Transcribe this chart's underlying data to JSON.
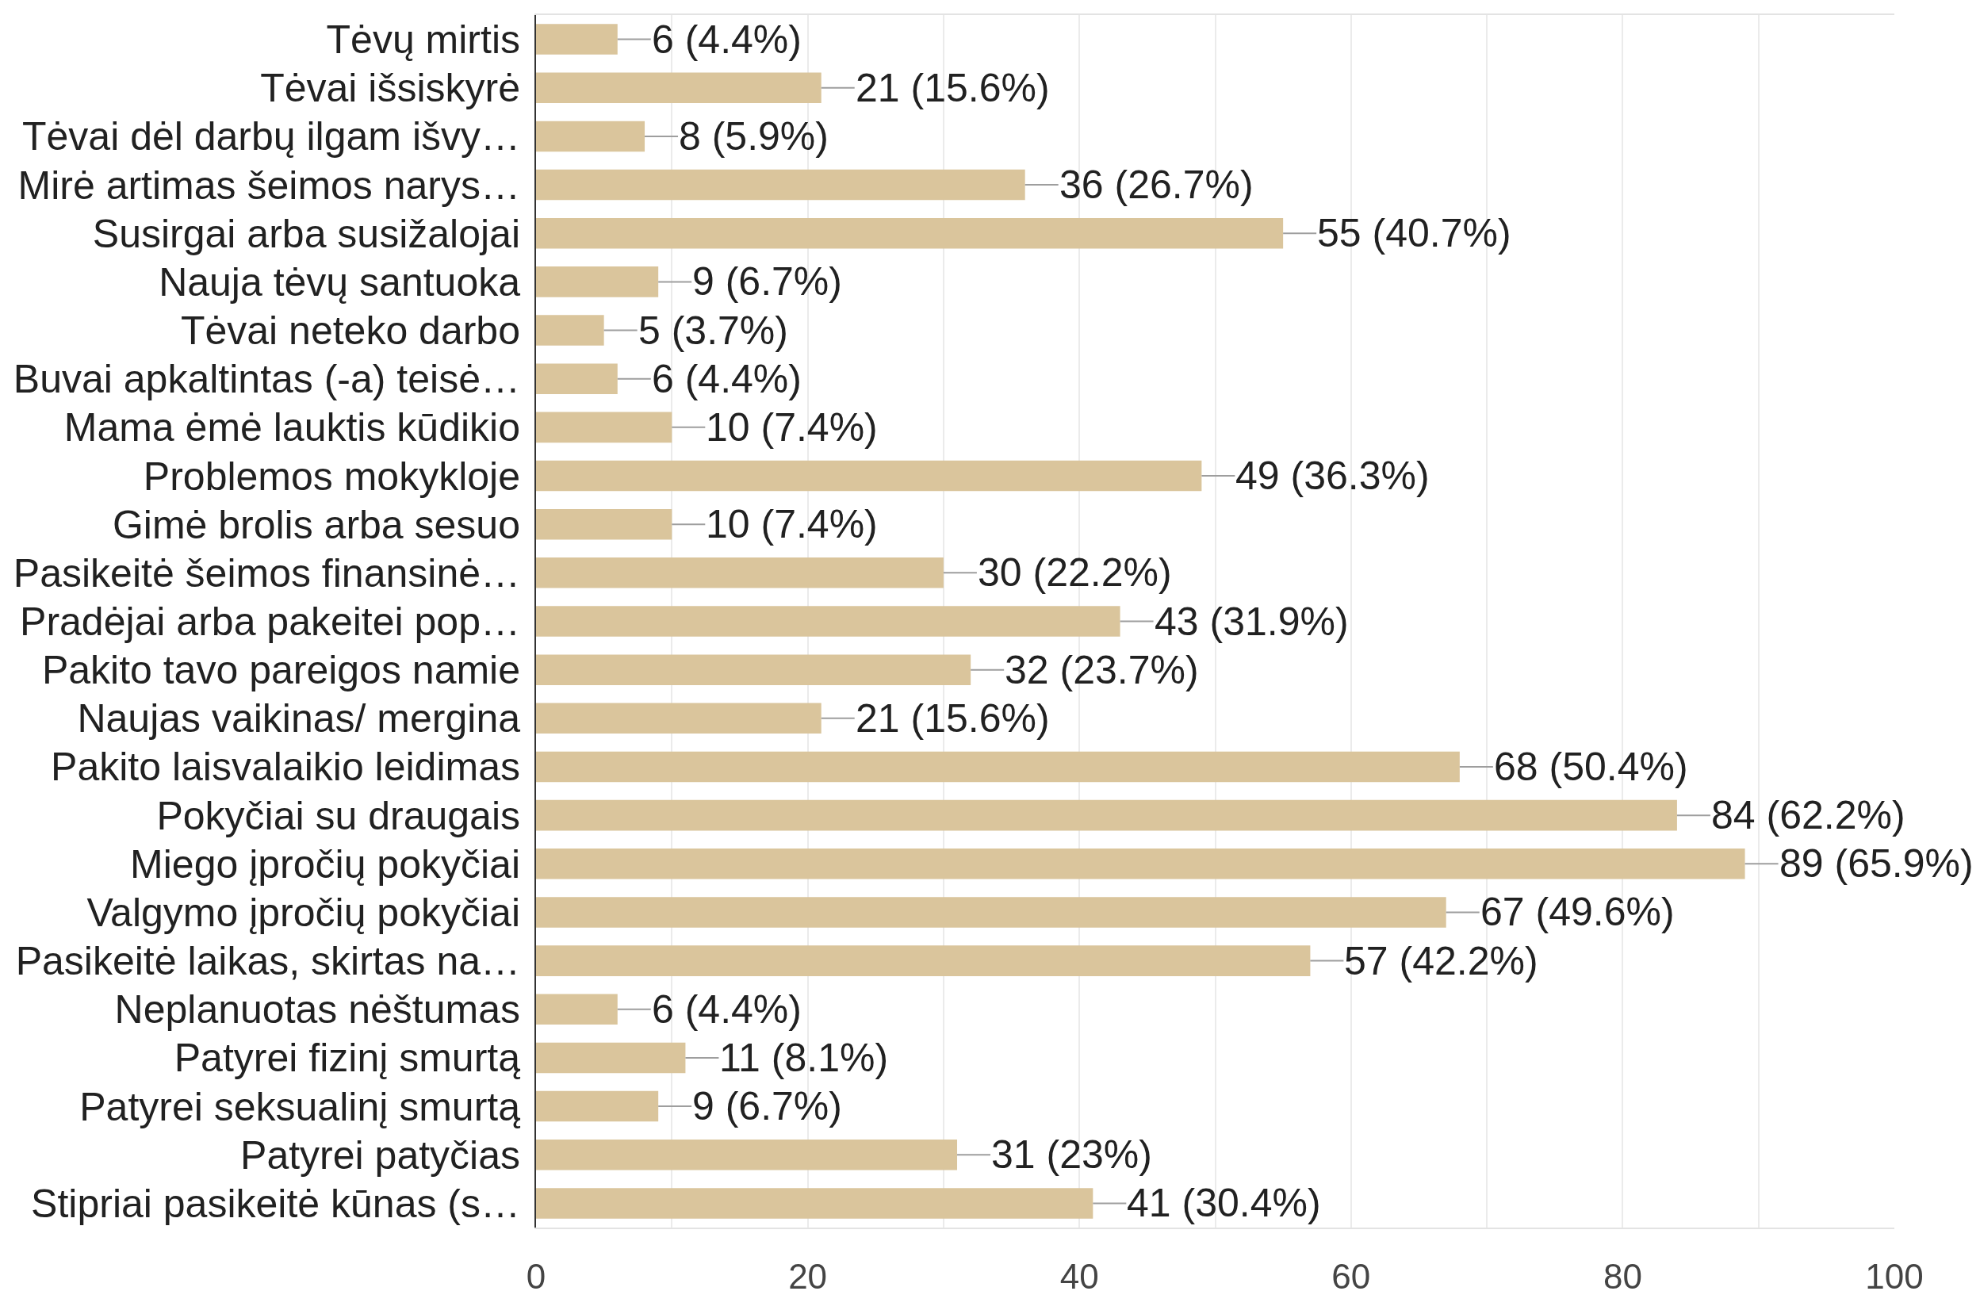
{
  "chart_data": {
    "type": "bar",
    "orientation": "horizontal",
    "categories": [
      "Tėvų mirtis",
      "Tėvai išsiskyrė",
      "Tėvai dėl darbų ilgam išvy…",
      "Mirė artimas šeimos narys…",
      "Susirgai arba susižalojai",
      "Nauja tėvų santuoka",
      "Tėvai neteko darbo",
      "Buvai apkaltintas (-a) teisė…",
      "Mama ėmė lauktis kūdikio",
      "Problemos mokykloje",
      "Gimė brolis arba sesuo",
      "Pasikeitė šeimos finansinė…",
      "Pradėjai arba pakeitei pop…",
      "Pakito tavo pareigos namie",
      "Naujas vaikinas/ mergina",
      "Pakito laisvalaikio leidimas",
      "Pokyčiai su draugais",
      "Miego įpročių pokyčiai",
      "Valgymo įpročių pokyčiai",
      "Pasikeitė laikas, skirtas na…",
      "Neplanuotas nėštumas",
      "Patyrei fizinį smurtą",
      "Patyrei seksualinį smurtą",
      "Patyrei patyčias",
      "Stipriai pasikeitė kūnas (s…"
    ],
    "values": [
      6,
      21,
      8,
      36,
      55,
      9,
      5,
      6,
      10,
      49,
      10,
      30,
      43,
      32,
      21,
      68,
      84,
      89,
      67,
      57,
      6,
      11,
      9,
      31,
      41
    ],
    "value_labels": [
      "6 (4.4%)",
      "21 (15.6%)",
      "8 (5.9%)",
      "36 (26.7%)",
      "55 (40.7%)",
      "9 (6.7%)",
      "5 (3.7%)",
      "6 (4.4%)",
      "10 (7.4%)",
      "49 (36.3%)",
      "10 (7.4%)",
      "30 (22.2%)",
      "43 (31.9%)",
      "32 (23.7%)",
      "21 (15.6%)",
      "68 (50.4%)",
      "84 (62.2%)",
      "89 (65.9%)",
      "67 (49.6%)",
      "57 (42.2%)",
      "6 (4.4%)",
      "11 (8.1%)",
      "9 (6.7%)",
      "31 (23%)",
      "41 (30.4%)"
    ],
    "color": "#dac59c",
    "xlim": [
      0,
      100
    ],
    "xticks": [
      0,
      {
        "value": 10,
        "label": null
      },
      20,
      {
        "value": 30,
        "label": null
      },
      40,
      {
        "value": 50,
        "label": null
      },
      60,
      {
        "value": 70,
        "label": null
      },
      80,
      {
        "value": 90,
        "label": null
      },
      100
    ],
    "grid": "x"
  }
}
